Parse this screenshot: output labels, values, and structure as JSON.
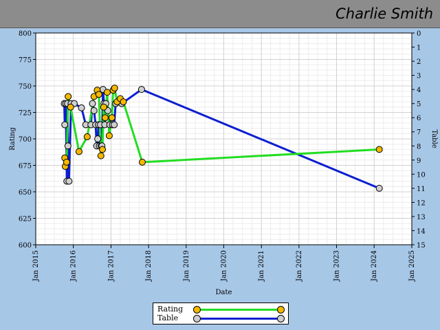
{
  "header": {
    "player_name": "Charlie Smith"
  },
  "chart_data": {
    "type": "line",
    "xlabel": "Date",
    "ylabel": "Rating",
    "y2label": "Table",
    "x_ticks": [
      "Jan 2015",
      "Jan 2016",
      "Jan 2017",
      "Jan 2018",
      "Jan 2019",
      "Jan 2020",
      "Jan 2021",
      "Jan 2022",
      "Jan 2023",
      "Jan 2024",
      "Jan 2025"
    ],
    "xlim": [
      "2015-01-01",
      "2025-01-01"
    ],
    "ylim": [
      600,
      800
    ],
    "y_ticks": [
      600,
      625,
      650,
      675,
      700,
      725,
      750,
      775,
      800
    ],
    "y2lim": [
      15,
      0
    ],
    "y2_ticks": [
      0,
      1,
      2,
      3,
      4,
      5,
      6,
      7,
      8,
      9,
      10,
      11,
      12,
      13,
      14,
      15
    ],
    "grid": true,
    "legend_position": "bottom",
    "series": [
      {
        "name": "Rating",
        "axis": "left",
        "line_color": "#22dd22",
        "marker_color": "#f5b800",
        "x": [
          "2015-10-10",
          "2015-10-15",
          "2015-10-28",
          "2015-11-12",
          "2015-12-05",
          "2016-02-25",
          "2016-05-15",
          "2016-07-20",
          "2016-08-20",
          "2016-09-05",
          "2016-09-25",
          "2016-10-10",
          "2016-10-22",
          "2016-11-05",
          "2016-11-25",
          "2016-12-15",
          "2017-01-10",
          "2017-01-22",
          "2017-02-05",
          "2017-03-01",
          "2017-04-01",
          "2017-05-01",
          "2017-11-01",
          "2024-02-20"
        ],
        "y": [
          682,
          674,
          678,
          740,
          730,
          688,
          702,
          740,
          746,
          742,
          684,
          690,
          730,
          720,
          744,
          703,
          720,
          746,
          748,
          735,
          738,
          735,
          678,
          690
        ]
      },
      {
        "name": "Table",
        "axis": "right",
        "line_color": "#0b1fd0",
        "marker_color": "#cfcfcf",
        "x": [
          "2015-10-05",
          "2015-10-10",
          "2015-10-20",
          "2015-10-30",
          "2015-11-05",
          "2015-11-10",
          "2015-11-20",
          "2015-12-10",
          "2016-01-10",
          "2016-03-20",
          "2016-05-01",
          "2016-06-20",
          "2016-07-05",
          "2016-07-20",
          "2016-08-05",
          "2016-08-15",
          "2016-08-25",
          "2016-09-01",
          "2016-09-10",
          "2016-09-20",
          "2016-09-28",
          "2016-10-05",
          "2016-10-15",
          "2016-10-25",
          "2016-11-01",
          "2016-11-12",
          "2016-12-01",
          "2016-12-20",
          "2017-01-15",
          "2017-02-01",
          "2017-02-15",
          "2017-04-15",
          "2017-10-25",
          "2024-02-20"
        ],
        "y": [
          5,
          6.5,
          5,
          10.5,
          5,
          8,
          10.5,
          5,
          5,
          5.3,
          6.5,
          6.5,
          5,
          5.5,
          6.5,
          8,
          7.5,
          6.5,
          8,
          6.5,
          8,
          8,
          4,
          5,
          6.5,
          5,
          5.5,
          6.5,
          6.5,
          6.5,
          5,
          5,
          4,
          11
        ]
      }
    ]
  },
  "legend": [
    {
      "label": "Rating",
      "line_color": "#22dd22",
      "marker_color": "#f5b800"
    },
    {
      "label": "Table",
      "line_color": "#0b1fd0",
      "marker_color": "#cfcfcf"
    }
  ]
}
